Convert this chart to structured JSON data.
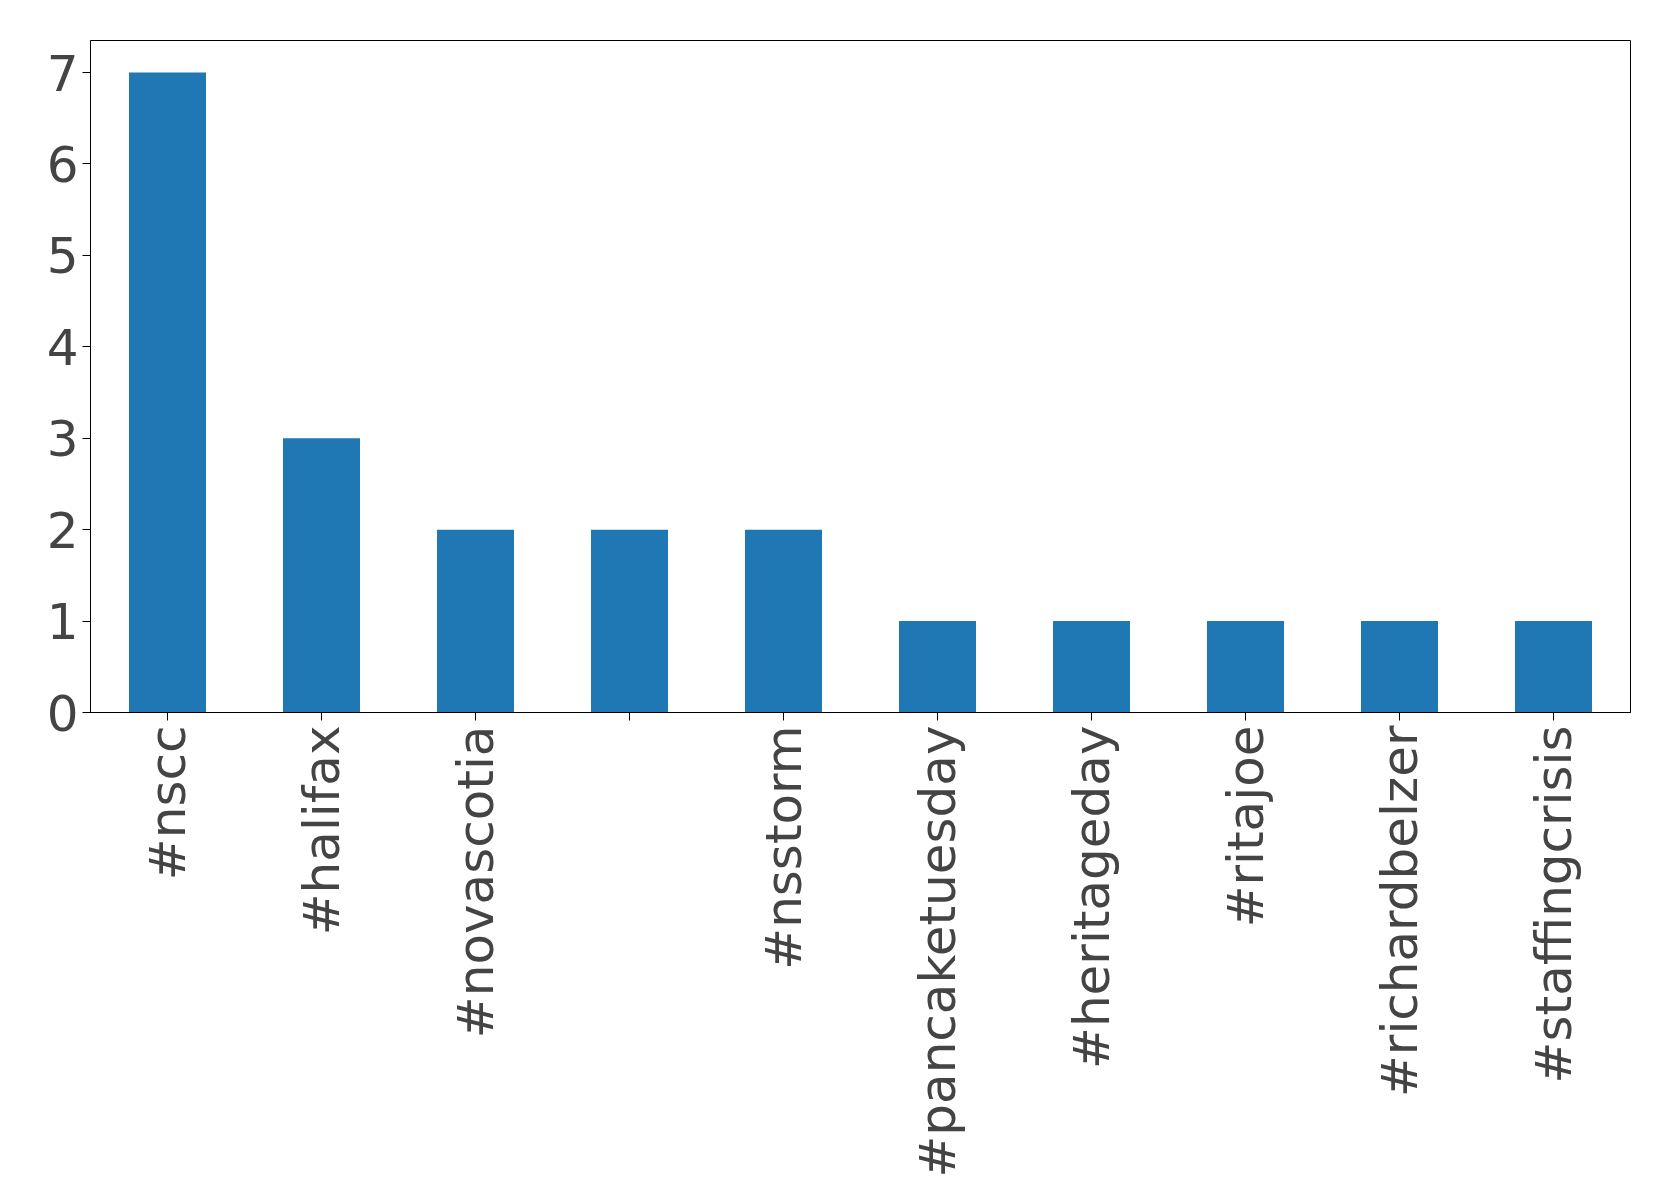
{
  "chart_data": {
    "type": "bar",
    "categories": [
      "#nscc",
      "#halifax",
      "#novascotia",
      null,
      "#nsstorm",
      "#pancaketuesday",
      "#heritageday",
      "#ritajoe",
      "#richardbelzer",
      "#staffingcrisis"
    ],
    "values": [
      7,
      3,
      2,
      2,
      2,
      1,
      1,
      1,
      1,
      1
    ],
    "color": "#1f77b4",
    "ylim": [
      0,
      7.35
    ],
    "yticks": [
      0,
      1,
      2,
      3,
      4,
      5,
      6,
      7
    ],
    "grid": false
  }
}
